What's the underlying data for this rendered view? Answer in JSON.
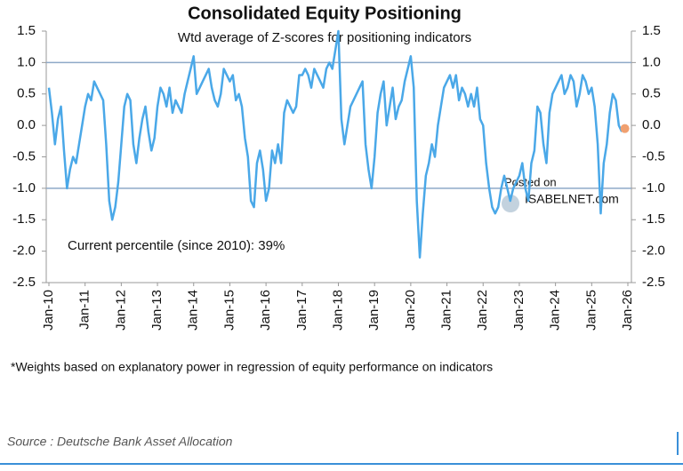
{
  "chart_data": {
    "type": "line",
    "title": "Consolidated Equity Positioning",
    "subtitle": "Wtd average of Z-scores for positioning indicators",
    "annotation": "Current percentile (since 2010): 39%",
    "footnote": "*Weights based on explanatory power in regression of equity performance on indicators",
    "source": "Source : Deutsche Bank Asset Allocation",
    "watermark": [
      "Posted on",
      "ISABELNET.com"
    ],
    "xlim": [
      2010,
      2026
    ],
    "xticks": [
      {
        "value": 2010,
        "label": "Jan-10"
      },
      {
        "value": 2011,
        "label": "Jan-11"
      },
      {
        "value": 2012,
        "label": "Jan-12"
      },
      {
        "value": 2013,
        "label": "Jan-13"
      },
      {
        "value": 2014,
        "label": "Jan-14"
      },
      {
        "value": 2015,
        "label": "Jan-15"
      },
      {
        "value": 2016,
        "label": "Jan-16"
      },
      {
        "value": 2017,
        "label": "Jan-17"
      },
      {
        "value": 2018,
        "label": "Jan-18"
      },
      {
        "value": 2019,
        "label": "Jan-19"
      },
      {
        "value": 2020,
        "label": "Jan-20"
      },
      {
        "value": 2021,
        "label": "Jan-21"
      },
      {
        "value": 2022,
        "label": "Jan-22"
      },
      {
        "value": 2023,
        "label": "Jan-23"
      },
      {
        "value": 2024,
        "label": "Jan-24"
      },
      {
        "value": 2025,
        "label": "Jan-25"
      },
      {
        "value": 2026,
        "label": "Jan-26"
      }
    ],
    "ylim": [
      -2.5,
      1.5
    ],
    "yticks": [
      1.5,
      {
        "value": 1,
        "label": "1.0"
      },
      0.5,
      {
        "value": 0,
        "label": "0.0"
      },
      -0.5,
      {
        "value": -1,
        "label": "-1.0"
      },
      -1.5,
      {
        "value": -2,
        "label": "-2.0"
      },
      -2.5
    ],
    "y2lim": [
      -2.5,
      1.5
    ],
    "y2ticks": [
      1.5,
      {
        "value": 1,
        "label": "1.0"
      },
      0.5,
      {
        "value": 0,
        "label": "0.0"
      },
      -0.5,
      {
        "value": -1,
        "label": "-1.0"
      },
      -1.5,
      {
        "value": -2,
        "label": "-2.0"
      },
      -2.5
    ],
    "reference_lines": [
      1,
      -1
    ],
    "reference_color": "#8ea9c8",
    "series": [
      {
        "color": "#4aa8e8",
        "x": [
          2010,
          2010.083,
          2010.167,
          2010.25,
          2010.333,
          2010.417,
          2010.5,
          2010.583,
          2010.667,
          2010.75,
          2010.833,
          2010.917,
          2011,
          2011.083,
          2011.167,
          2011.25,
          2011.333,
          2011.417,
          2011.5,
          2011.583,
          2011.667,
          2011.75,
          2011.833,
          2011.917,
          2012,
          2012.083,
          2012.167,
          2012.25,
          2012.333,
          2012.417,
          2012.5,
          2012.583,
          2012.667,
          2012.75,
          2012.833,
          2012.917,
          2013,
          2013.083,
          2013.167,
          2013.25,
          2013.333,
          2013.417,
          2013.5,
          2013.583,
          2013.667,
          2013.75,
          2013.833,
          2013.917,
          2014,
          2014.083,
          2014.167,
          2014.25,
          2014.333,
          2014.417,
          2014.5,
          2014.583,
          2014.667,
          2014.75,
          2014.833,
          2014.917,
          2015,
          2015.083,
          2015.167,
          2015.25,
          2015.333,
          2015.417,
          2015.5,
          2015.583,
          2015.667,
          2015.75,
          2015.833,
          2015.917,
          2016,
          2016.083,
          2016.167,
          2016.25,
          2016.333,
          2016.417,
          2016.5,
          2016.583,
          2016.667,
          2016.75,
          2016.833,
          2016.917,
          2017,
          2017.083,
          2017.167,
          2017.25,
          2017.333,
          2017.417,
          2017.5,
          2017.583,
          2017.667,
          2017.75,
          2017.833,
          2017.917,
          2018,
          2018.083,
          2018.167,
          2018.25,
          2018.333,
          2018.417,
          2018.5,
          2018.583,
          2018.667,
          2018.75,
          2018.833,
          2018.917,
          2019,
          2019.083,
          2019.167,
          2019.25,
          2019.333,
          2019.417,
          2019.5,
          2019.583,
          2019.667,
          2019.75,
          2019.833,
          2019.917,
          2020,
          2020.083,
          2020.167,
          2020.25,
          2020.333,
          2020.417,
          2020.5,
          2020.583,
          2020.667,
          2020.75,
          2020.833,
          2020.917,
          2021,
          2021.083,
          2021.167,
          2021.25,
          2021.333,
          2021.417,
          2021.5,
          2021.583,
          2021.667,
          2021.75,
          2021.833,
          2021.917,
          2022,
          2022.083,
          2022.167,
          2022.25,
          2022.333,
          2022.417,
          2022.5,
          2022.583,
          2022.667,
          2022.75,
          2022.833,
          2022.917,
          2023,
          2023.083,
          2023.167,
          2023.25,
          2023.333,
          2023.417,
          2023.5,
          2023.583,
          2023.667,
          2023.75,
          2023.833,
          2023.917,
          2024,
          2024.083,
          2024.167,
          2024.25,
          2024.333,
          2024.417,
          2024.5,
          2024.583,
          2024.667,
          2024.75,
          2024.833,
          2024.917,
          2025,
          2025.083,
          2025.167,
          2025.25,
          2025.333,
          2025.417,
          2025.5,
          2025.583,
          2025.667,
          2025.75,
          2025.833
        ],
        "values": [
          0.6,
          0.2,
          -0.3,
          0.1,
          0.3,
          -0.4,
          -1.0,
          -0.7,
          -0.5,
          -0.6,
          -0.3,
          0.0,
          0.3,
          0.5,
          0.4,
          0.7,
          0.6,
          0.5,
          0.4,
          -0.3,
          -1.2,
          -1.5,
          -1.3,
          -0.9,
          -0.3,
          0.3,
          0.5,
          0.4,
          -0.3,
          -0.6,
          -0.2,
          0.1,
          0.3,
          -0.1,
          -0.4,
          -0.2,
          0.3,
          0.6,
          0.5,
          0.3,
          0.6,
          0.2,
          0.4,
          0.3,
          0.2,
          0.5,
          0.7,
          0.9,
          1.1,
          0.5,
          0.6,
          0.7,
          0.8,
          0.9,
          0.6,
          0.4,
          0.3,
          0.5,
          0.9,
          0.8,
          0.7,
          0.8,
          0.4,
          0.5,
          0.3,
          -0.2,
          -0.5,
          -1.2,
          -1.3,
          -0.6,
          -0.4,
          -0.7,
          -1.2,
          -1.0,
          -0.4,
          -0.6,
          -0.3,
          -0.6,
          0.2,
          0.4,
          0.3,
          0.2,
          0.3,
          0.8,
          0.8,
          0.9,
          0.8,
          0.6,
          0.9,
          0.8,
          0.7,
          0.6,
          0.9,
          1.0,
          0.9,
          1.2,
          1.5,
          0.1,
          -0.3,
          0.0,
          0.3,
          0.4,
          0.5,
          0.6,
          0.7,
          -0.3,
          -0.7,
          -1.0,
          -0.5,
          0.2,
          0.5,
          0.7,
          0.0,
          0.3,
          0.6,
          0.1,
          0.3,
          0.4,
          0.7,
          0.9,
          1.1,
          0.6,
          -1.2,
          -2.1,
          -1.4,
          -0.8,
          -0.6,
          -0.3,
          -0.5,
          0.0,
          0.3,
          0.6,
          0.7,
          0.8,
          0.6,
          0.8,
          0.4,
          0.6,
          0.5,
          0.3,
          0.5,
          0.3,
          0.6,
          0.1,
          0.0,
          -0.6,
          -1.0,
          -1.3,
          -1.4,
          -1.3,
          -1.0,
          -0.8,
          -1.0,
          -1.2,
          -1.0,
          -0.9,
          -0.8,
          -0.6,
          -1.0,
          -1.2,
          -0.6,
          -0.4,
          0.3,
          0.2,
          -0.3,
          -0.6,
          0.2,
          0.5,
          0.6,
          0.7,
          0.8,
          0.5,
          0.6,
          0.8,
          0.7,
          0.3,
          0.5,
          0.8,
          0.7,
          0.5,
          0.6,
          0.3,
          -0.3,
          -1.4,
          -0.6,
          -0.3,
          0.2,
          0.5,
          0.4,
          0.0,
          -0.1
        ]
      },
      {
        "color": "#f0a070",
        "marker": true,
        "x": [
          2025.917
        ],
        "values": [
          -0.05
        ]
      }
    ]
  }
}
